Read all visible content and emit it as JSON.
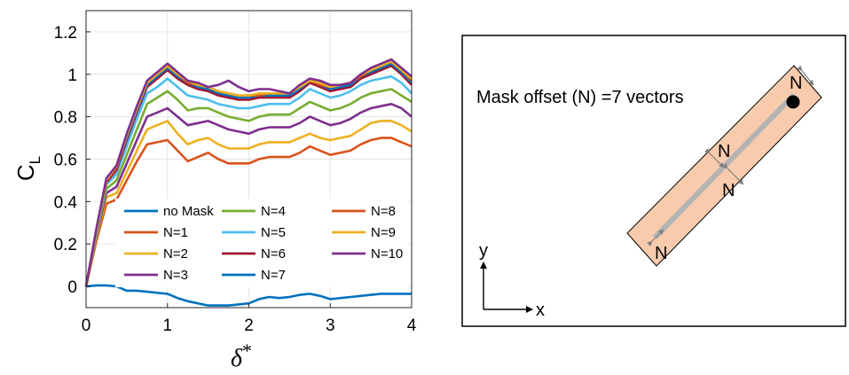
{
  "chart_data": {
    "type": "line",
    "xlabel_main": "δ",
    "xlabel_sup": "*",
    "ylabel_main": "C",
    "ylabel_sub": "L",
    "xlim": [
      0,
      4
    ],
    "ylim": [
      -0.1,
      1.3
    ],
    "xticks": [
      0,
      1,
      2,
      3,
      4
    ],
    "yticks": [
      0,
      0.2,
      0.4,
      0.6,
      0.8,
      1,
      1.2
    ],
    "ytick_labels": [
      "0",
      "0.2",
      "0.4",
      "0.6",
      "0.8",
      "1",
      "1.2"
    ],
    "grid": true,
    "legend_position": "bottom, inside plot, 3 columns",
    "x": [
      0,
      0.125,
      0.25,
      0.375,
      0.5,
      0.625,
      0.75,
      0.875,
      1.0,
      1.125,
      1.25,
      1.375,
      1.5,
      1.625,
      1.75,
      1.875,
      2.0,
      2.125,
      2.25,
      2.375,
      2.5,
      2.625,
      2.75,
      2.875,
      3.0,
      3.125,
      3.25,
      3.375,
      3.5,
      3.625,
      3.75,
      3.875,
      4.0
    ],
    "series": [
      {
        "name": "no Mask",
        "color": "#0072BD",
        "values": [
          0,
          0.005,
          0.005,
          0.0,
          -0.02,
          -0.02,
          -0.025,
          -0.03,
          -0.035,
          -0.055,
          -0.07,
          -0.08,
          -0.09,
          -0.09,
          -0.09,
          -0.085,
          -0.08,
          -0.06,
          -0.05,
          -0.055,
          -0.05,
          -0.04,
          -0.035,
          -0.045,
          -0.06,
          -0.055,
          -0.05,
          -0.045,
          -0.04,
          -0.035,
          -0.035,
          -0.035,
          -0.035
        ]
      },
      {
        "name": "N=1",
        "color": "#D95319",
        "values": [
          0,
          0.21,
          0.39,
          0.41,
          0.5,
          0.59,
          0.67,
          0.68,
          0.69,
          0.64,
          0.59,
          0.61,
          0.63,
          0.6,
          0.58,
          0.58,
          0.58,
          0.6,
          0.61,
          0.61,
          0.61,
          0.63,
          0.66,
          0.64,
          0.62,
          0.63,
          0.64,
          0.67,
          0.69,
          0.7,
          0.7,
          0.68,
          0.66
        ]
      },
      {
        "name": "N=2",
        "color": "#EDB120",
        "values": [
          0,
          0.22,
          0.42,
          0.44,
          0.54,
          0.64,
          0.74,
          0.76,
          0.78,
          0.72,
          0.67,
          0.69,
          0.7,
          0.67,
          0.65,
          0.65,
          0.65,
          0.67,
          0.68,
          0.68,
          0.68,
          0.7,
          0.72,
          0.7,
          0.69,
          0.7,
          0.71,
          0.74,
          0.77,
          0.78,
          0.78,
          0.76,
          0.73
        ]
      },
      {
        "name": "N=3",
        "color": "#7E2F8E",
        "values": [
          0,
          0.23,
          0.44,
          0.47,
          0.58,
          0.69,
          0.8,
          0.82,
          0.84,
          0.8,
          0.76,
          0.77,
          0.78,
          0.76,
          0.74,
          0.73,
          0.72,
          0.74,
          0.75,
          0.75,
          0.75,
          0.77,
          0.8,
          0.78,
          0.76,
          0.77,
          0.79,
          0.82,
          0.84,
          0.85,
          0.86,
          0.84,
          0.8
        ]
      },
      {
        "name": "N=4",
        "color": "#77AC30",
        "values": [
          0,
          0.24,
          0.46,
          0.5,
          0.62,
          0.74,
          0.86,
          0.89,
          0.92,
          0.88,
          0.83,
          0.84,
          0.84,
          0.82,
          0.8,
          0.79,
          0.78,
          0.8,
          0.81,
          0.81,
          0.81,
          0.84,
          0.87,
          0.85,
          0.83,
          0.84,
          0.86,
          0.89,
          0.91,
          0.92,
          0.93,
          0.9,
          0.87
        ]
      },
      {
        "name": "N=5",
        "color": "#4DBEEE",
        "values": [
          0,
          0.25,
          0.48,
          0.53,
          0.66,
          0.79,
          0.91,
          0.94,
          0.98,
          0.94,
          0.9,
          0.89,
          0.88,
          0.86,
          0.85,
          0.84,
          0.84,
          0.85,
          0.86,
          0.86,
          0.86,
          0.89,
          0.93,
          0.91,
          0.89,
          0.9,
          0.92,
          0.95,
          0.97,
          0.98,
          0.99,
          0.96,
          0.91
        ]
      },
      {
        "name": "N=6",
        "color": "#A2142F",
        "values": [
          0,
          0.26,
          0.49,
          0.55,
          0.69,
          0.82,
          0.94,
          0.98,
          1.02,
          0.98,
          0.95,
          0.93,
          0.92,
          0.9,
          0.89,
          0.88,
          0.88,
          0.89,
          0.89,
          0.89,
          0.89,
          0.92,
          0.96,
          0.94,
          0.92,
          0.93,
          0.94,
          0.98,
          1.0,
          1.02,
          1.04,
          1.0,
          0.95
        ]
      },
      {
        "name": "N=7",
        "color": "#0072BD",
        "values": [
          0,
          0.26,
          0.5,
          0.56,
          0.7,
          0.83,
          0.95,
          0.99,
          1.03,
          0.99,
          0.96,
          0.94,
          0.93,
          0.91,
          0.9,
          0.89,
          0.89,
          0.9,
          0.9,
          0.9,
          0.9,
          0.93,
          0.97,
          0.95,
          0.93,
          0.94,
          0.95,
          0.99,
          1.01,
          1.03,
          1.05,
          1.01,
          0.96
        ]
      },
      {
        "name": "N=8",
        "color": "#D95319",
        "values": [
          0,
          0.26,
          0.5,
          0.56,
          0.71,
          0.84,
          0.96,
          1.0,
          1.04,
          1.0,
          0.96,
          0.95,
          0.94,
          0.92,
          0.91,
          0.9,
          0.9,
          0.9,
          0.91,
          0.91,
          0.91,
          0.94,
          0.97,
          0.95,
          0.94,
          0.95,
          0.96,
          0.99,
          1.02,
          1.04,
          1.06,
          1.02,
          0.97
        ]
      },
      {
        "name": "N=9",
        "color": "#EDB120",
        "values": [
          0,
          0.26,
          0.5,
          0.57,
          0.71,
          0.84,
          0.96,
          1.0,
          1.04,
          1.0,
          0.97,
          0.95,
          0.94,
          0.92,
          0.91,
          0.9,
          0.9,
          0.91,
          0.91,
          0.91,
          0.91,
          0.94,
          0.97,
          0.96,
          0.94,
          0.95,
          0.96,
          1.0,
          1.02,
          1.04,
          1.06,
          1.02,
          0.98
        ]
      },
      {
        "name": "N=10",
        "color": "#7E2F8E",
        "values": [
          0,
          0.27,
          0.51,
          0.57,
          0.72,
          0.85,
          0.97,
          1.01,
          1.05,
          1.01,
          0.97,
          0.96,
          0.94,
          0.95,
          0.97,
          0.94,
          0.92,
          0.93,
          0.93,
          0.92,
          0.91,
          0.95,
          0.98,
          0.97,
          0.95,
          0.95,
          0.96,
          1.0,
          1.03,
          1.05,
          1.07,
          1.03,
          0.99
        ]
      }
    ]
  },
  "diagram": {
    "annotation": "Mask offset (N) =7 vectors",
    "offset_label": "N",
    "axis_x": "x",
    "axis_y": "y",
    "mask_fill": "#F8CBAD",
    "probe_color": "#B3B3B3"
  }
}
